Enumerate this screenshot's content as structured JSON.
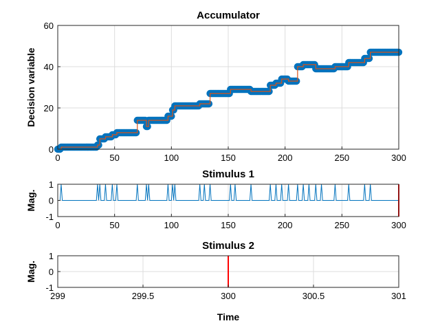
{
  "chart_data": [
    {
      "type": "line",
      "title": "Accumulator",
      "xlabel": "",
      "ylabel": "Decision variable",
      "xlim": [
        0,
        300
      ],
      "ylim": [
        0,
        60
      ],
      "xticks": [
        0,
        50,
        100,
        150,
        200,
        250,
        300
      ],
      "yticks": [
        0,
        20,
        40,
        60
      ],
      "grid": true,
      "series": [
        {
          "color": "#0072bd",
          "style": "markers",
          "steps": [
            [
              0,
              0
            ],
            [
              3,
              1
            ],
            [
              35,
              2
            ],
            [
              37,
              5
            ],
            [
              42,
              6
            ],
            [
              48,
              7
            ],
            [
              52,
              8
            ],
            [
              70,
              14
            ],
            [
              78,
              11
            ],
            [
              80,
              14
            ],
            [
              97,
              16
            ],
            [
              101,
              19
            ],
            [
              103,
              21
            ],
            [
              125,
              22
            ],
            [
              134,
              27
            ],
            [
              152,
              29
            ],
            [
              170,
              28
            ],
            [
              187,
              31
            ],
            [
              192,
              32
            ],
            [
              197,
              34
            ],
            [
              203,
              33
            ],
            [
              211,
              40
            ],
            [
              216,
              41
            ],
            [
              227,
              39
            ],
            [
              244,
              40
            ],
            [
              256,
              42
            ],
            [
              270,
              44
            ],
            [
              275,
              47
            ],
            [
              300,
              47
            ]
          ]
        },
        {
          "color": "#d95319",
          "style": "line",
          "same_as_previous": true
        }
      ]
    },
    {
      "type": "line",
      "title": "Stimulus 1",
      "xlabel": "",
      "ylabel": "Mag.",
      "xlim": [
        0,
        300
      ],
      "ylim": [
        -1,
        1
      ],
      "xticks": [
        0,
        50,
        100,
        150,
        200,
        250,
        300
      ],
      "yticks": [
        -1,
        0,
        1
      ],
      "grid": true,
      "series": [
        {
          "color": "#0072bd",
          "baseline": 0,
          "pulse_times": [
            3,
            35,
            37,
            42,
            48,
            52,
            70,
            78,
            80,
            97,
            101,
            103,
            125,
            129,
            134,
            152,
            156,
            170,
            187,
            192,
            197,
            203,
            211,
            216,
            221,
            227,
            232,
            244,
            256,
            270,
            275
          ],
          "pulse_value": 1
        }
      ],
      "marker_line": {
        "x": 300,
        "color": "#ff0000"
      }
    },
    {
      "type": "line",
      "title": "Stimulus 2",
      "xlabel": "Time",
      "ylabel": "Mag.",
      "xlim": [
        299,
        301
      ],
      "ylim": [
        -1,
        1
      ],
      "xticks": [
        299,
        299.5,
        300,
        300.5,
        301
      ],
      "yticks": [
        -1,
        0,
        1
      ],
      "grid": true,
      "series": [],
      "marker_line": {
        "x": 300,
        "color": "#ff0000"
      }
    }
  ]
}
